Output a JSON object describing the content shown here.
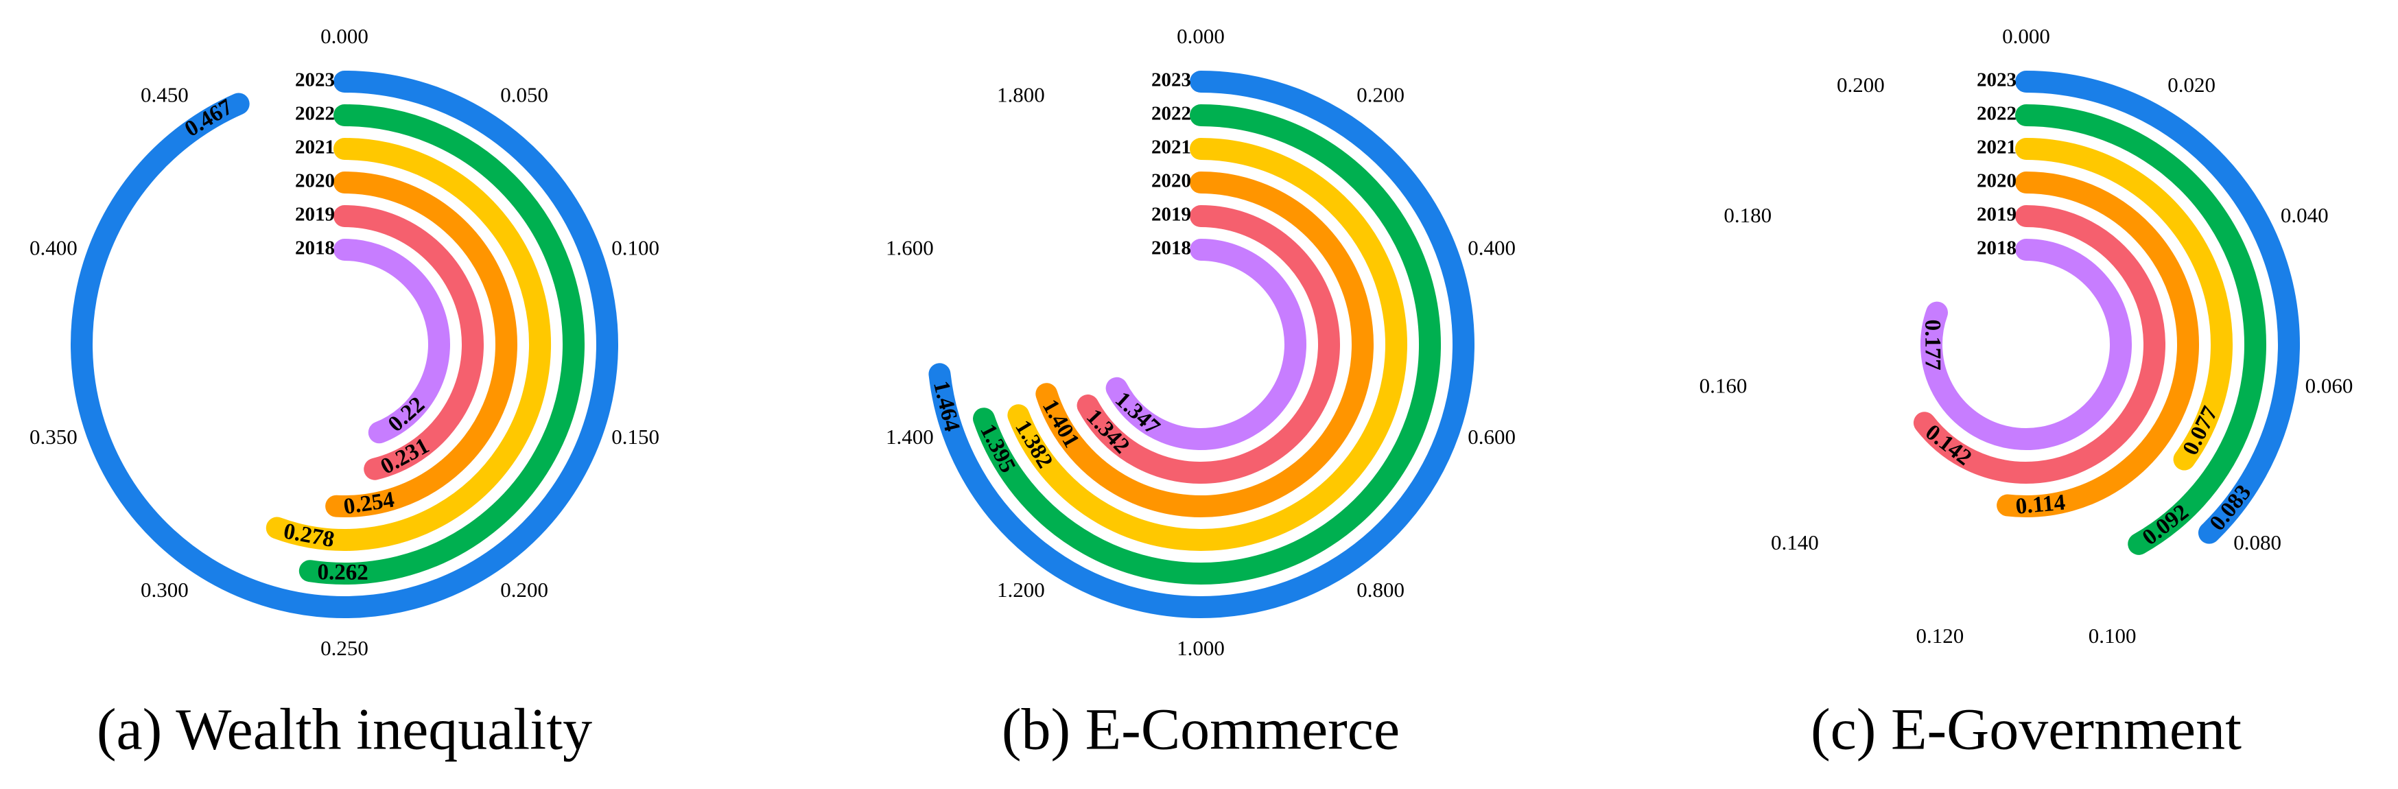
{
  "chart_data": [
    {
      "type": "radial-bar",
      "caption": "(a) Wealth inequality",
      "categories": [
        "2018",
        "2019",
        "2020",
        "2021",
        "2022",
        "2023"
      ],
      "values": [
        0.22,
        0.231,
        0.254,
        0.278,
        0.262,
        0.467
      ],
      "colors": [
        "#c77dff",
        "#f5606e",
        "#ff9500",
        "#ffc800",
        "#00b050",
        "#1a7fe8"
      ],
      "ylim": [
        0,
        0.5
      ],
      "yticks": [
        {
          "value": 0,
          "label": "0.000"
        },
        {
          "value": 0.05,
          "label": "0.050"
        },
        {
          "value": 0.1,
          "label": "0.100"
        },
        {
          "value": 0.15,
          "label": "0.150"
        },
        {
          "value": 0.2,
          "label": "0.200"
        },
        {
          "value": 0.25,
          "label": "0.250"
        },
        {
          "value": 0.3,
          "label": "0.300"
        },
        {
          "value": 0.35,
          "label": "0.350"
        },
        {
          "value": 0.4,
          "label": "0.400"
        },
        {
          "value": 0.45,
          "label": "0.450"
        }
      ]
    },
    {
      "type": "radial-bar",
      "caption": "(b) E-Commerce",
      "categories": [
        "2018",
        "2019",
        "2020",
        "2021",
        "2022",
        "2023"
      ],
      "values": [
        1.347,
        1.342,
        1.401,
        1.382,
        1.395,
        1.464
      ],
      "colors": [
        "#c77dff",
        "#f5606e",
        "#ff9500",
        "#ffc800",
        "#00b050",
        "#1a7fe8"
      ],
      "ylim": [
        0,
        2.0
      ],
      "yticks": [
        {
          "value": 0,
          "label": "0.000"
        },
        {
          "value": 0.2,
          "label": "0.200"
        },
        {
          "value": 0.4,
          "label": "0.400"
        },
        {
          "value": 0.6,
          "label": "0.600"
        },
        {
          "value": 0.8,
          "label": "0.800"
        },
        {
          "value": 1.0,
          "label": "1.000"
        },
        {
          "value": 1.2,
          "label": "1.200"
        },
        {
          "value": 1.4,
          "label": "1.400"
        },
        {
          "value": 1.6,
          "label": "1.600"
        },
        {
          "value": 1.8,
          "label": "1.800"
        }
      ]
    },
    {
      "type": "radial-bar",
      "caption": "(c) E-Government",
      "categories": [
        "2018",
        "2019",
        "2020",
        "2021",
        "2022",
        "2023"
      ],
      "values": [
        0.177,
        0.142,
        0.114,
        0.077,
        0.092,
        0.083
      ],
      "colors": [
        "#c77dff",
        "#f5606e",
        "#ff9500",
        "#ffc800",
        "#00b050",
        "#1a7fe8"
      ],
      "ylim": [
        0,
        0.22
      ],
      "yticks": [
        {
          "value": 0,
          "label": "0.000"
        },
        {
          "value": 0.02,
          "label": "0.020"
        },
        {
          "value": 0.04,
          "label": "0.040"
        },
        {
          "value": 0.06,
          "label": "0.060"
        },
        {
          "value": 0.08,
          "label": "0.080"
        },
        {
          "value": 0.1,
          "label": "0.100"
        },
        {
          "value": 0.12,
          "label": "0.120"
        },
        {
          "value": 0.14,
          "label": "0.140"
        },
        {
          "value": 0.16,
          "label": "0.160"
        },
        {
          "value": 0.18,
          "label": "0.180"
        },
        {
          "value": 0.2,
          "label": "0.200"
        }
      ]
    }
  ]
}
